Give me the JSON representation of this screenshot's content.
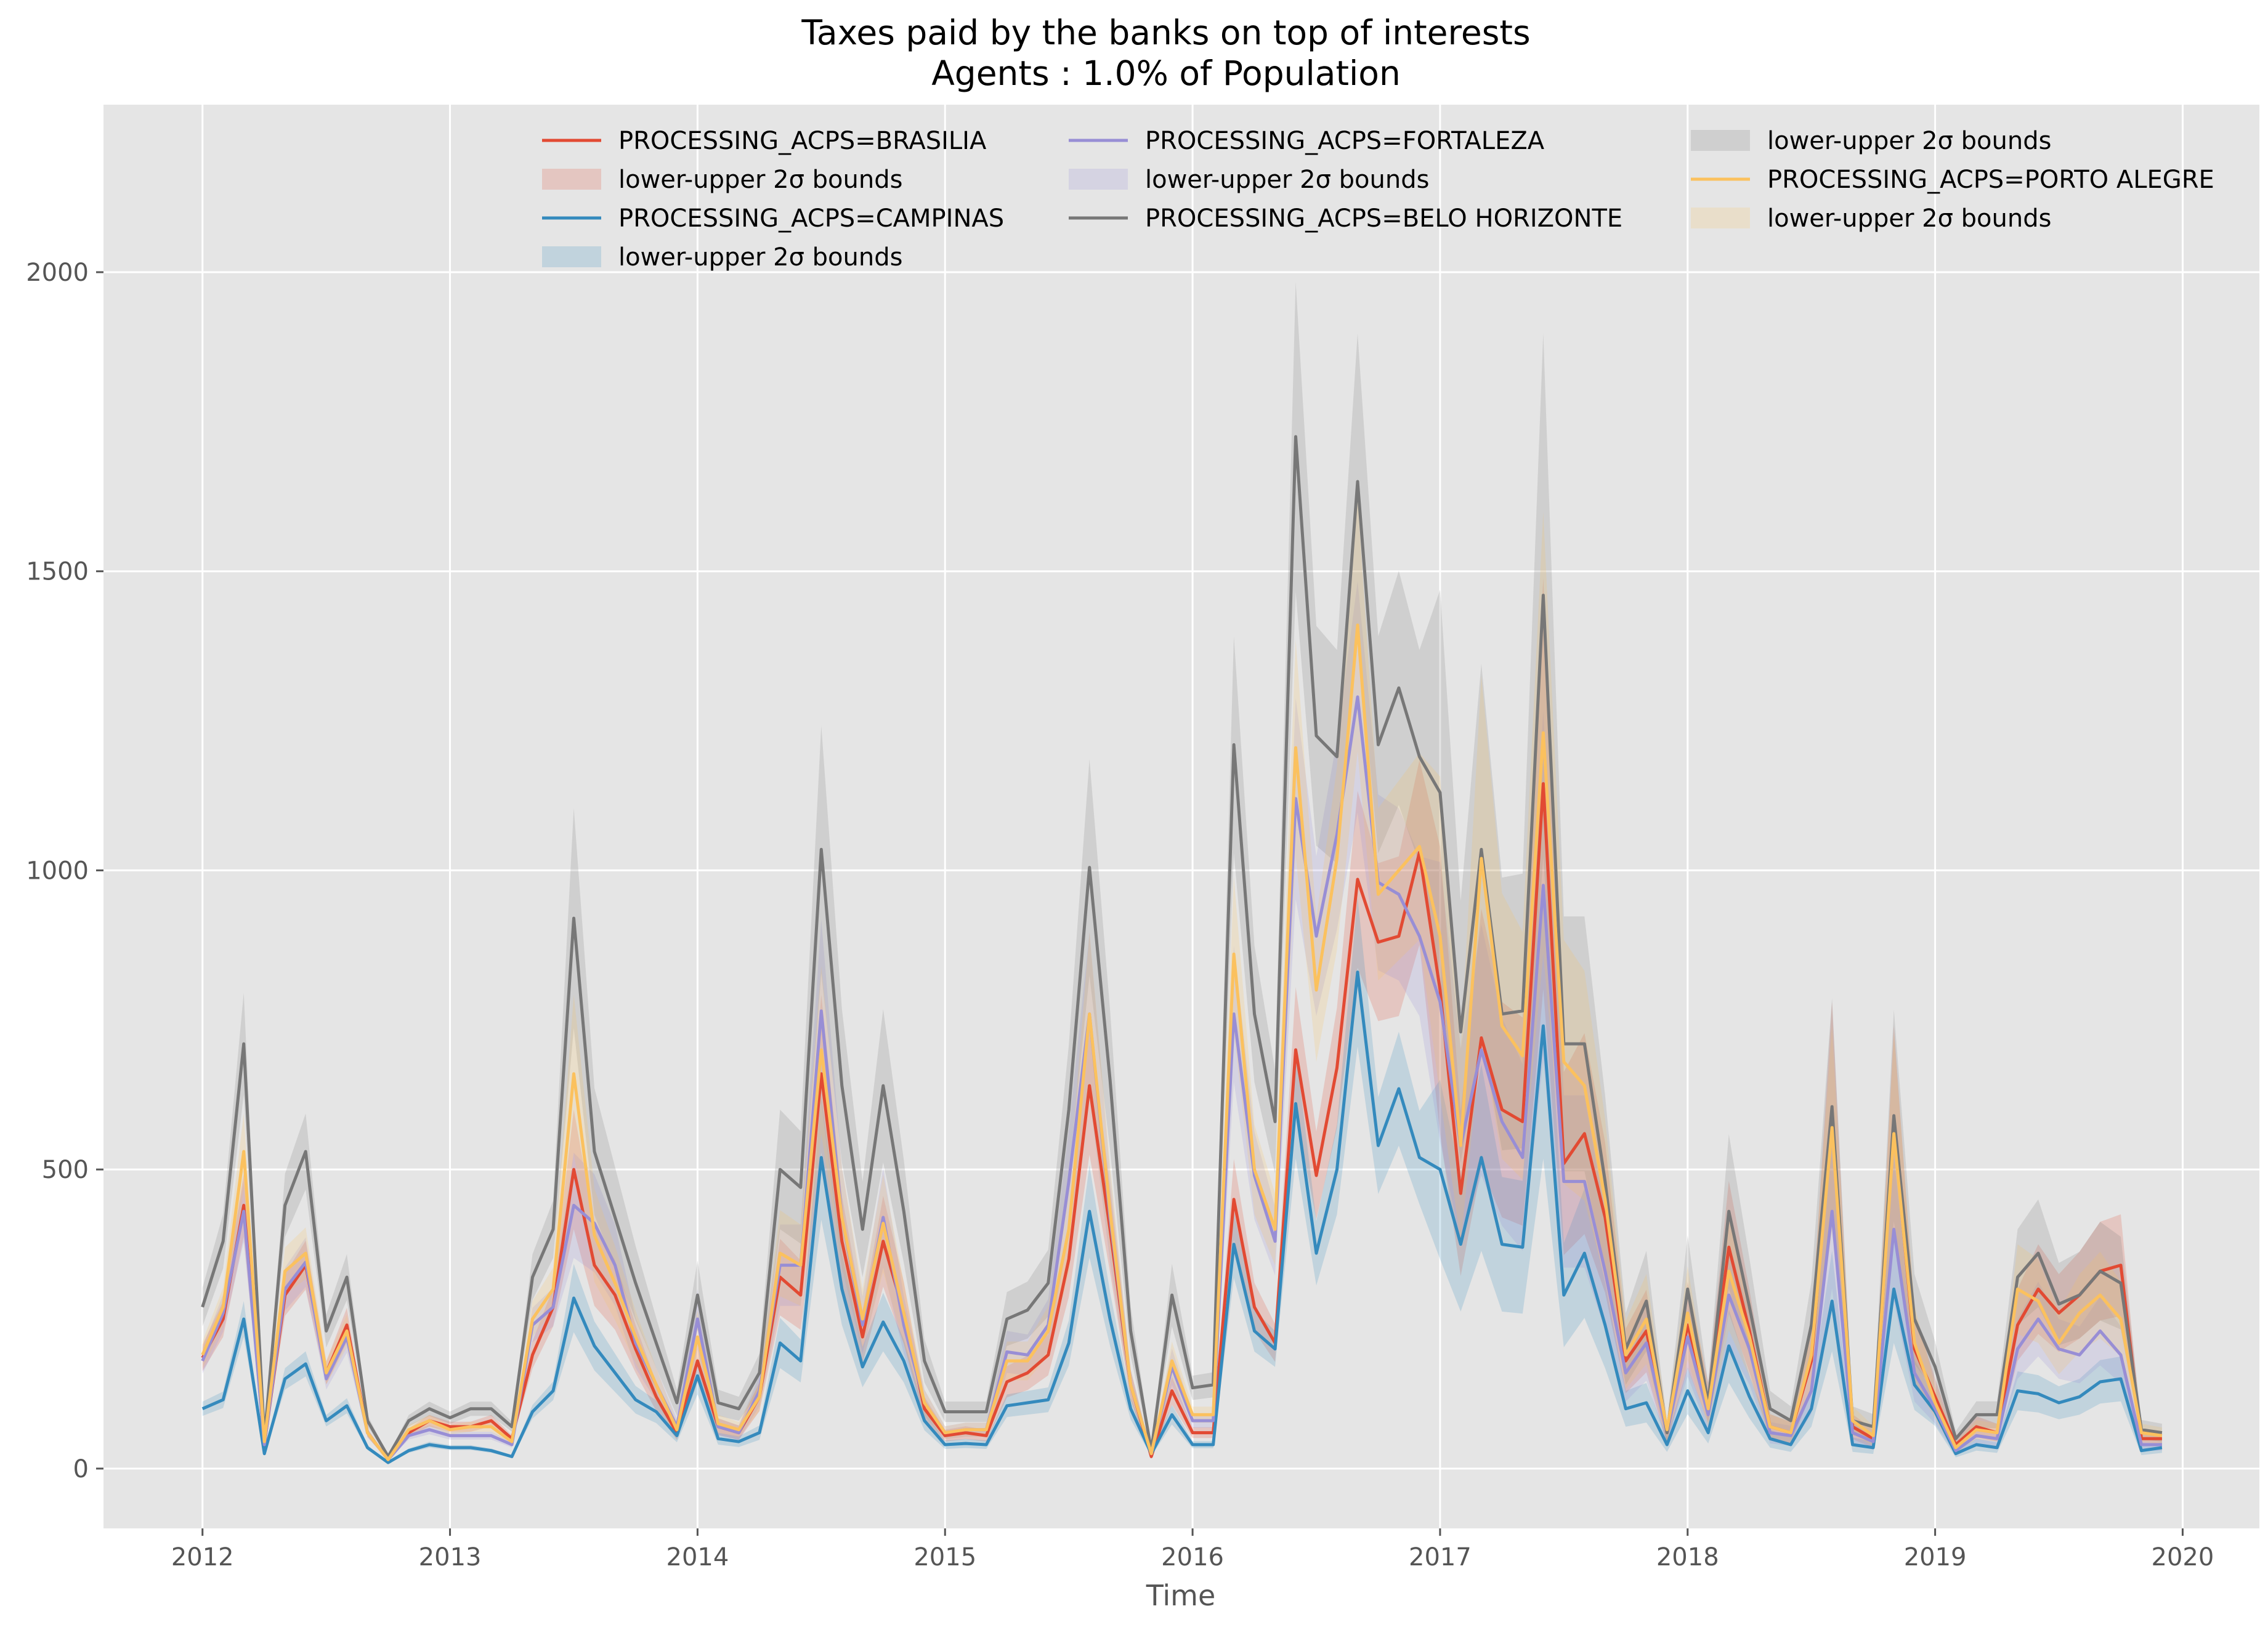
{
  "chart_data": {
    "type": "line",
    "title_line1": "Taxes paid by the banks on top of interests",
    "title_line2": "Agents : 1.0% of Population",
    "xlabel": "Time",
    "ylabel": "",
    "xlim": [
      2011.6,
      2020.31
    ],
    "ylim": [
      -100,
      2280
    ],
    "x_ticks": [
      2012,
      2013,
      2014,
      2015,
      2016,
      2017,
      2018,
      2019,
      2020
    ],
    "x_tick_labels": [
      "2012",
      "2013",
      "2014",
      "2015",
      "2016",
      "2017",
      "2018",
      "2019",
      "2020"
    ],
    "y_ticks": [
      0,
      500,
      1000,
      1500,
      2000
    ],
    "y_tick_labels": [
      "0",
      "500",
      "1000",
      "1500",
      "2000"
    ],
    "grid": true,
    "legend_position": "top",
    "band_label": "lower-upper 2σ bounds",
    "style": {
      "background": "#e5e5e5",
      "grid_color": "#ffffff",
      "tick_color": "#555555"
    },
    "x_start": 2012.0,
    "x_step_months": 1,
    "band_relative_halfwidth": [
      0.12,
      0.12,
      0.12,
      0.12,
      0.12,
      0.12,
      0.12,
      0.12,
      0.12,
      0.12,
      0.12,
      0.12,
      0.12,
      0.12,
      0.12,
      0.12,
      0.12,
      0.12,
      0.2,
      0.2,
      0.2,
      0.2,
      0.2,
      0.2,
      0.2,
      0.2,
      0.2,
      0.2,
      0.2,
      0.2,
      0.2,
      0.2,
      0.2,
      0.2,
      0.2,
      0.2,
      0.18,
      0.18,
      0.18,
      0.18,
      0.18,
      0.18,
      0.18,
      0.18,
      0.18,
      0.18,
      0.18,
      0.18,
      0.15,
      0.15,
      0.15,
      0.15,
      0.15,
      0.15,
      0.15,
      0.15,
      0.15,
      0.15,
      0.15,
      0.15,
      0.3,
      0.3,
      0.3,
      0.3,
      0.3,
      0.3,
      0.3,
      0.3,
      0.3,
      0.3,
      0.3,
      0.3,
      0.3,
      0.3,
      0.3,
      0.3,
      0.3,
      0.3,
      0.3,
      0.3,
      0.3,
      0.3,
      0.3,
      0.3,
      0.25,
      0.25,
      0.25,
      0.25,
      0.25,
      0.25,
      0.25,
      0.25,
      0.25,
      0.25,
      0.25,
      0.25
    ],
    "series": [
      {
        "name": "PROCESSING_ACPS=BRASILIA",
        "color": "#e24a33",
        "values": [
          185,
          250,
          440,
          40,
          290,
          340,
          160,
          240,
          60,
          15,
          60,
          80,
          70,
          70,
          80,
          50,
          190,
          270,
          500,
          340,
          290,
          200,
          120,
          60,
          180,
          70,
          60,
          120,
          320,
          290,
          660,
          380,
          220,
          380,
          260,
          100,
          55,
          60,
          55,
          145,
          160,
          190,
          350,
          640,
          400,
          140,
          20,
          130,
          60,
          60,
          450,
          270,
          210,
          700,
          490,
          670,
          985,
          880,
          890,
          1030,
          800,
          460,
          720,
          600,
          580,
          1145,
          510,
          560,
          420,
          180,
          230,
          60,
          240,
          110,
          370,
          230,
          70,
          60,
          180,
          600,
          70,
          50,
          570,
          200,
          120,
          40,
          70,
          60,
          240,
          300,
          260,
          290,
          330,
          340,
          50,
          50
        ]
      },
      {
        "name": "PROCESSING_ACPS=CAMPINAS",
        "color": "#348abd",
        "values": [
          100,
          115,
          250,
          25,
          150,
          175,
          80,
          105,
          35,
          10,
          30,
          40,
          35,
          35,
          30,
          20,
          95,
          130,
          285,
          205,
          160,
          115,
          95,
          55,
          155,
          50,
          45,
          60,
          210,
          180,
          520,
          300,
          170,
          245,
          180,
          80,
          40,
          42,
          40,
          105,
          110,
          115,
          210,
          430,
          250,
          100,
          25,
          90,
          40,
          40,
          375,
          230,
          200,
          610,
          360,
          500,
          830,
          540,
          635,
          520,
          500,
          375,
          520,
          375,
          370,
          740,
          290,
          360,
          240,
          100,
          110,
          40,
          130,
          60,
          205,
          120,
          50,
          40,
          100,
          280,
          40,
          35,
          300,
          140,
          95,
          25,
          40,
          35,
          130,
          125,
          110,
          120,
          145,
          150,
          30,
          35
        ]
      },
      {
        "name": "PROCESSING_ACPS=FORTALEZA",
        "color": "#988ed5",
        "values": [
          180,
          260,
          430,
          40,
          300,
          345,
          150,
          220,
          60,
          15,
          55,
          65,
          55,
          55,
          55,
          40,
          240,
          270,
          440,
          410,
          340,
          210,
          140,
          70,
          250,
          70,
          60,
          130,
          340,
          340,
          765,
          420,
          240,
          420,
          240,
          110,
          60,
          65,
          65,
          195,
          190,
          240,
          480,
          760,
          420,
          140,
          25,
          170,
          80,
          80,
          760,
          490,
          380,
          1120,
          890,
          1060,
          1290,
          980,
          960,
          890,
          780,
          540,
          700,
          580,
          520,
          975,
          480,
          480,
          330,
          160,
          210,
          60,
          220,
          90,
          290,
          200,
          60,
          55,
          130,
          430,
          60,
          45,
          400,
          160,
          100,
          30,
          55,
          50,
          200,
          250,
          200,
          190,
          230,
          190,
          40,
          40
        ]
      },
      {
        "name": "PROCESSING_ACPS=BELO HORIZONTE",
        "color": "#777777",
        "values": [
          270,
          380,
          710,
          50,
          440,
          530,
          230,
          320,
          80,
          20,
          80,
          100,
          85,
          100,
          100,
          70,
          320,
          400,
          920,
          530,
          420,
          310,
          210,
          110,
          290,
          110,
          100,
          160,
          500,
          470,
          1035,
          640,
          400,
          640,
          430,
          180,
          95,
          95,
          95,
          250,
          265,
          310,
          600,
          1005,
          650,
          230,
          30,
          290,
          135,
          140,
          1210,
          760,
          580,
          1725,
          1225,
          1190,
          1650,
          1210,
          1305,
          1190,
          1130,
          730,
          1035,
          760,
          765,
          1460,
          710,
          710,
          480,
          200,
          280,
          60,
          300,
          110,
          430,
          270,
          100,
          80,
          240,
          605,
          80,
          70,
          590,
          250,
          170,
          50,
          90,
          90,
          320,
          360,
          275,
          290,
          330,
          310,
          65,
          60
        ]
      },
      {
        "name": "PROCESSING_ACPS=PORTO ALEGRE",
        "color": "#fbc15e",
        "values": [
          190,
          270,
          530,
          45,
          330,
          360,
          160,
          230,
          60,
          15,
          65,
          80,
          65,
          70,
          70,
          45,
          250,
          300,
          660,
          390,
          310,
          220,
          140,
          65,
          220,
          75,
          65,
          120,
          360,
          340,
          700,
          420,
          250,
          410,
          260,
          110,
          60,
          65,
          65,
          180,
          180,
          230,
          400,
          760,
          430,
          140,
          25,
          180,
          90,
          90,
          860,
          500,
          400,
          1205,
          800,
          1020,
          1410,
          960,
          1000,
          1040,
          890,
          540,
          1020,
          740,
          690,
          1230,
          680,
          640,
          450,
          190,
          250,
          65,
          260,
          100,
          330,
          220,
          70,
          60,
          190,
          570,
          80,
          55,
          560,
          210,
          110,
          35,
          65,
          60,
          300,
          280,
          210,
          260,
          290,
          250,
          60,
          55
        ]
      }
    ]
  }
}
